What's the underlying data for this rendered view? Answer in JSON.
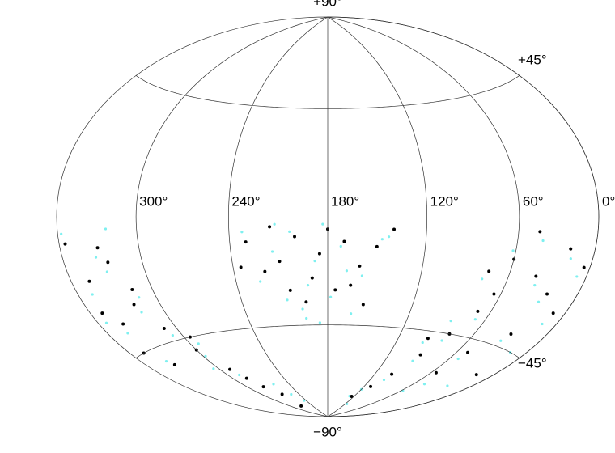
{
  "chart_data": {
    "type": "scatter",
    "projection": "hammer",
    "xlim": [
      360,
      0
    ],
    "ylim": [
      -90,
      90
    ],
    "xticks": [
      {
        "value": 300,
        "label": "300°"
      },
      {
        "value": 240,
        "label": "240°"
      },
      {
        "value": 180,
        "label": "180°"
      },
      {
        "value": 120,
        "label": "120°"
      },
      {
        "value": 60,
        "label": "60°"
      },
      {
        "value": 0,
        "label": "0°"
      }
    ],
    "yticks": [
      {
        "value": 90,
        "label": "+90°"
      },
      {
        "value": 45,
        "label": "+45°"
      },
      {
        "value": -45,
        "label": "−45°"
      },
      {
        "value": -90,
        "label": "−90°"
      }
    ],
    "grid": true,
    "series": [
      {
        "color": "#7ff0f0",
        "x": [
          172,
          188,
          203,
          158,
          193,
          214,
          178,
          147,
          224,
          198,
          168,
          183,
          208,
          143,
          232,
          333,
          348,
          318,
          357,
          308,
          298,
          288,
          343,
          328,
          353,
          313,
          293,
          18,
          38,
          12,
          62,
          33,
          68,
          82,
          92,
          102,
          52,
          8,
          42,
          28,
          78,
          120,
          130,
          255,
          262,
          245,
          115,
          322,
          338,
          305,
          22,
          48,
          58,
          14,
          86,
          97,
          163,
          196,
          212,
          186
        ],
        "values": [
          -12,
          -18,
          -6,
          -24,
          -28,
          -14,
          -33,
          -9,
          -26,
          -38,
          -22,
          -3,
          -34,
          -8,
          -6,
          -13,
          -24,
          -33,
          -5,
          -43,
          -53,
          -63,
          -38,
          -18,
          -33,
          -28,
          -48,
          -13,
          -23,
          -34,
          -12,
          -43,
          -38,
          -48,
          -58,
          -68,
          -53,
          -18,
          -8,
          -28,
          -23,
          -74,
          -78,
          -76,
          -70,
          -80,
          -82,
          -4,
          -50,
          -58,
          -62,
          -65,
          -70,
          -45,
          -40,
          -50,
          -40,
          -42,
          -3,
          -44
        ]
      },
      {
        "color": "#000000",
        "x": [
          170,
          185,
          200,
          160,
          190,
          210,
          175,
          150,
          220,
          195,
          165,
          180,
          205,
          140,
          230,
          330,
          345,
          320,
          355,
          310,
          300,
          290,
          280,
          340,
          325,
          350,
          315,
          295,
          270,
          20,
          40,
          10,
          60,
          30,
          70,
          80,
          90,
          100,
          110,
          50,
          5,
          45,
          25,
          75,
          155,
          215,
          235,
          335,
          348,
          15,
          55,
          65,
          95,
          125,
          275,
          285
        ],
        "values": [
          -10,
          -15,
          -8,
          -20,
          -25,
          -18,
          -30,
          -12,
          -22,
          -35,
          -28,
          -5,
          -30,
          -5,
          -10,
          -10,
          -20,
          -30,
          -8,
          -40,
          -50,
          -60,
          -70,
          -35,
          -15,
          -30,
          -25,
          -45,
          -75,
          -10,
          -20,
          -30,
          -15,
          -40,
          -35,
          -45,
          -55,
          -65,
          -72,
          -50,
          -15,
          -5,
          -25,
          -20,
          -36,
          -4,
          -20,
          -52,
          -45,
          -55,
          -60,
          -28,
          -48,
          -78,
          -82,
          -65
        ]
      }
    ]
  }
}
